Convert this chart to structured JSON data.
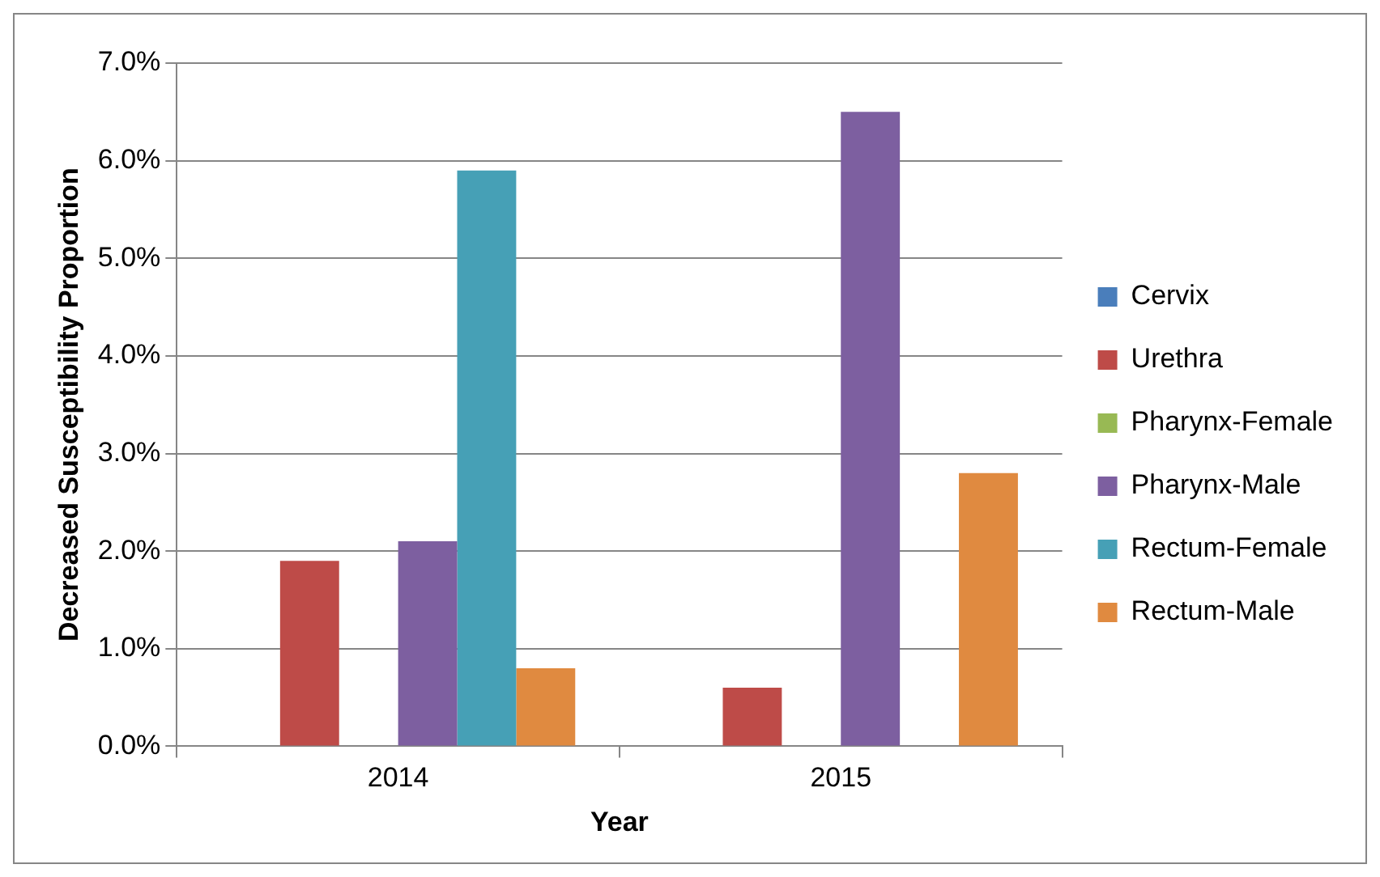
{
  "chart_data": {
    "type": "bar",
    "xlabel": "Year",
    "ylabel": "Decreased Susceptibility Proportion",
    "categories": [
      "2014",
      "2015"
    ],
    "series": [
      {
        "name": "Cervix",
        "color": "#4a7ebb",
        "values": [
          0,
          0
        ]
      },
      {
        "name": "Urethra",
        "color": "#be4b48",
        "values": [
          1.9,
          0.6
        ]
      },
      {
        "name": "Pharynx-Female",
        "color": "#98b954",
        "values": [
          0,
          0
        ]
      },
      {
        "name": "Pharynx-Male",
        "color": "#7d5fa0",
        "values": [
          2.1,
          6.5
        ]
      },
      {
        "name": "Rectum-Female",
        "color": "#46a0b6",
        "values": [
          5.9,
          0
        ]
      },
      {
        "name": "Rectum-Male",
        "color": "#e08a40",
        "values": [
          0.8,
          2.8
        ]
      }
    ],
    "ylim": [
      0,
      7
    ],
    "yticks": [
      {
        "value": 0,
        "label": "0.0%"
      },
      {
        "value": 1,
        "label": "1.0%"
      },
      {
        "value": 2,
        "label": "2.0%"
      },
      {
        "value": 3,
        "label": "3.0%"
      },
      {
        "value": 4,
        "label": "4.0%"
      },
      {
        "value": 5,
        "label": "5.0%"
      },
      {
        "value": 6,
        "label": "6.0%"
      },
      {
        "value": 7,
        "label": "7.0%"
      }
    ],
    "grid": "y",
    "legend": "right"
  }
}
